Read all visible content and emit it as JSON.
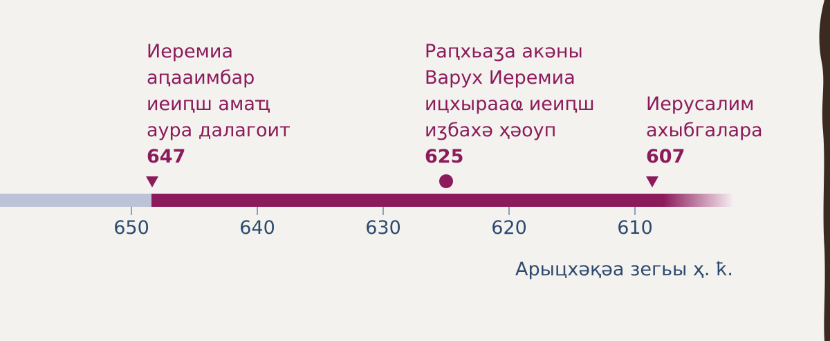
{
  "events": [
    {
      "lines": [
        "Иеремиа",
        "аԥааимбар",
        "иеиԥш амаҵ",
        "аура далагоит"
      ],
      "year": "647"
    },
    {
      "lines": [
        "Раԥхьаӡа акәны",
        "Варух Иеремиа",
        "ицхырааҩ иеиԥш",
        "иӡбахә ҳәоуп"
      ],
      "year": "625"
    },
    {
      "lines": [
        "Иерусалим",
        "ахыбгалара"
      ],
      "year": "607"
    }
  ],
  "axis": {
    "ticks": [
      "650",
      "640",
      "630",
      "620",
      "610"
    ],
    "label": "Арыцхәқәа зегьы ҳ. ҟ."
  }
}
